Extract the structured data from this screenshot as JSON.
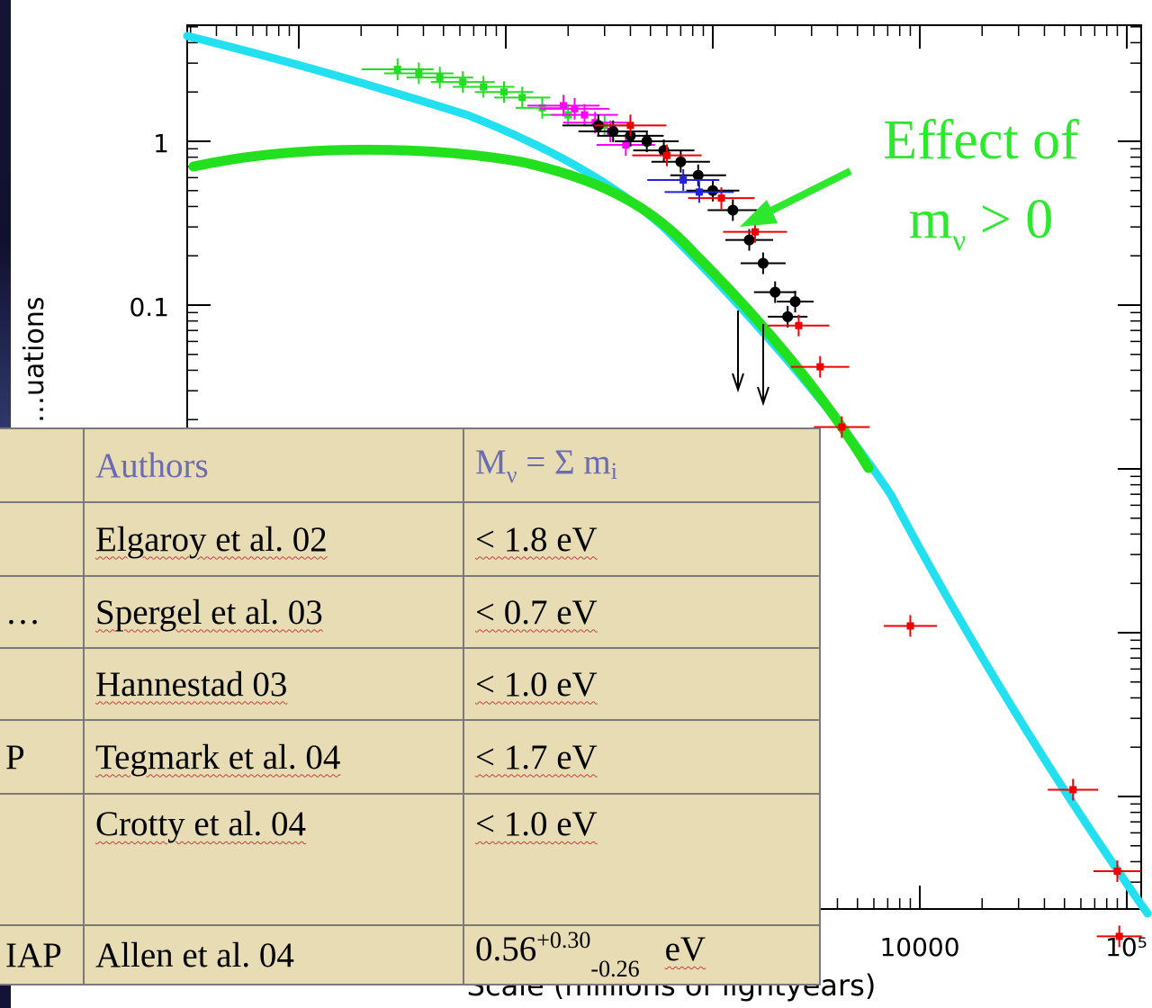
{
  "chart_data": {
    "type": "scatter",
    "y_scale": "log",
    "x_scale": "log",
    "ylabel": "…uations",
    "xlabel": "Scale (millions of lightyears)",
    "y_ticks": [
      "1",
      "0.1"
    ],
    "x_ticks": [
      "10000",
      "10⁵"
    ],
    "annotation": "Effect of mν > 0",
    "colors": {
      "model_curve": "#22e0f0",
      "massive_neutrino_curve": "#22e01e",
      "annotation": "#2ee82e"
    },
    "series": [
      {
        "color": "#22dd22",
        "points": [
          [
            30,
            2.75
          ],
          [
            38,
            2.6
          ],
          [
            48,
            2.45
          ],
          [
            62,
            2.3
          ],
          [
            78,
            2.15
          ],
          [
            98,
            2.0
          ],
          [
            120,
            1.85
          ],
          [
            150,
            1.6
          ],
          [
            200,
            1.45
          ],
          [
            300,
            1.25
          ]
        ]
      },
      {
        "color": "#ff00ff",
        "points": [
          [
            190,
            1.65
          ],
          [
            215,
            1.58
          ],
          [
            240,
            1.45
          ],
          [
            270,
            1.3
          ],
          [
            320,
            1.15
          ],
          [
            380,
            0.95
          ]
        ]
      },
      {
        "color": "#000000",
        "points": [
          [
            280,
            1.25
          ],
          [
            330,
            1.15
          ],
          [
            400,
            1.08
          ],
          [
            480,
            1.0
          ],
          [
            580,
            0.88
          ],
          [
            700,
            0.75
          ],
          [
            850,
            0.62
          ],
          [
            1000,
            0.5
          ],
          [
            1250,
            0.38
          ],
          [
            1500,
            0.25
          ],
          [
            1750,
            0.18
          ],
          [
            2000,
            0.12
          ],
          [
            2300,
            0.085
          ],
          [
            2500,
            0.105
          ]
        ]
      },
      {
        "color": "#ee0000",
        "points": [
          [
            400,
            1.25
          ],
          [
            600,
            0.82
          ],
          [
            1100,
            0.45
          ],
          [
            1600,
            0.28
          ],
          [
            2600,
            0.075
          ],
          [
            3300,
            0.042
          ],
          [
            4200,
            0.018
          ],
          [
            9000,
            0.0011
          ],
          [
            55000,
            0.00011
          ],
          [
            90000,
            3.5e-05
          ],
          [
            92000,
            1.4e-05
          ]
        ]
      },
      {
        "color": "#2222dd",
        "points": [
          [
            720,
            0.58
          ],
          [
            860,
            0.49
          ]
        ]
      }
    ]
  },
  "table": {
    "header": {
      "col1": "",
      "authors": "Authors",
      "limit_main": "M",
      "limit_sub": "ν",
      "limit_rest": " = Σ m",
      "limit_i": "i"
    },
    "rows": [
      {
        "col1": "",
        "authors": "Elgaroy et al. 02",
        "limit": "< 1.8 eV"
      },
      {
        "col1": "…",
        "authors": "Spergel et al. 03",
        "limit": "< 0.7 eV"
      },
      {
        "col1": "",
        "authors": "Hannestad 03",
        "limit": "< 1.0 eV"
      },
      {
        "col1": "P",
        "authors": "Tegmark et al. 04",
        "limit": "< 1.7 eV"
      },
      {
        "col1": "",
        "authors": "Crotty et al. 04",
        "limit": "< 1.0 eV"
      },
      {
        "col1": "IAP",
        "authors": "Allen et al. 04",
        "limit_base": "0.56",
        "limit_sup": "+0.30",
        "limit_sub": "-0.26",
        "limit_unit": "eV"
      }
    ]
  }
}
